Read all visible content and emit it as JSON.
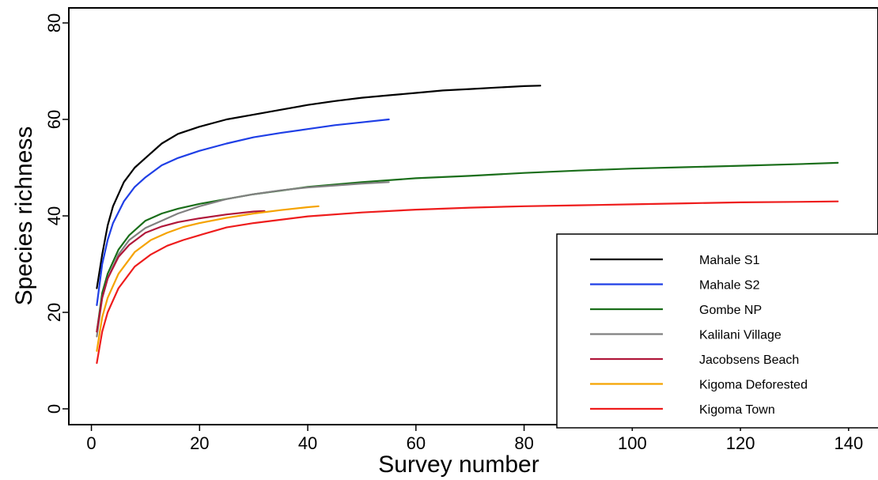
{
  "chart_data": {
    "type": "line",
    "title": "",
    "xlabel": "Survey number",
    "ylabel": "Species richness",
    "xlim": [
      -5,
      140
    ],
    "ylim": [
      -3,
      82
    ],
    "x_ticks": [
      0,
      20,
      40,
      60,
      80,
      100,
      120,
      140
    ],
    "y_ticks": [
      0,
      20,
      40,
      60,
      80
    ],
    "grid": false,
    "legend_position": "bottom-right",
    "series": [
      {
        "name": "Mahale S1",
        "color": "#000000",
        "x": [
          1,
          2,
          3,
          4,
          6,
          8,
          10,
          13,
          16,
          20,
          25,
          30,
          35,
          40,
          45,
          50,
          55,
          60,
          65,
          70,
          75,
          80,
          83
        ],
        "y": [
          25,
          32,
          38,
          42,
          47,
          50,
          52,
          55,
          57,
          58.5,
          60,
          61,
          62,
          63,
          63.8,
          64.5,
          65,
          65.5,
          66,
          66.3,
          66.6,
          66.9,
          67
        ]
      },
      {
        "name": "Mahale S2",
        "color": "#1f3fe6",
        "x": [
          1,
          2,
          3,
          4,
          6,
          8,
          10,
          13,
          16,
          20,
          25,
          30,
          35,
          40,
          45,
          50,
          55
        ],
        "y": [
          21.5,
          30,
          35,
          38.5,
          43,
          46,
          48,
          50.5,
          52,
          53.5,
          55,
          56.3,
          57.2,
          58,
          58.8,
          59.4,
          60
        ]
      },
      {
        "name": "Gombe NP",
        "color": "#1a6e1a",
        "x": [
          1,
          2,
          3,
          5,
          7,
          10,
          13,
          16,
          20,
          25,
          30,
          40,
          50,
          60,
          70,
          80,
          90,
          100,
          110,
          120,
          130,
          138
        ],
        "y": [
          16,
          24,
          28,
          33,
          36,
          39,
          40.5,
          41.5,
          42.5,
          43.5,
          44.5,
          46,
          47,
          47.8,
          48.3,
          48.9,
          49.4,
          49.8,
          50.1,
          50.4,
          50.7,
          51
        ]
      },
      {
        "name": "Kalilani Village",
        "color": "#808080",
        "x": [
          1,
          2,
          3,
          5,
          7,
          10,
          13,
          16,
          20,
          25,
          30,
          35,
          40,
          45,
          50,
          55
        ],
        "y": [
          15,
          23,
          27,
          32,
          35,
          37.5,
          39,
          40.5,
          42,
          43.5,
          44.5,
          45.3,
          45.9,
          46.3,
          46.7,
          47
        ]
      },
      {
        "name": "Jacobsens Beach",
        "color": "#b0173a",
        "x": [
          1,
          2,
          3,
          5,
          7,
          10,
          13,
          16,
          20,
          25,
          30,
          32
        ],
        "y": [
          16,
          23,
          27,
          31.5,
          34,
          36.5,
          37.8,
          38.7,
          39.5,
          40.3,
          40.9,
          41
        ]
      },
      {
        "name": "Kigoma Deforested",
        "color": "#f5a300",
        "x": [
          1,
          2,
          3,
          5,
          8,
          11,
          14,
          17,
          20,
          25,
          30,
          35,
          40,
          42
        ],
        "y": [
          12,
          19,
          23,
          28,
          32.5,
          35,
          36.5,
          37.7,
          38.5,
          39.6,
          40.5,
          41.2,
          41.8,
          42
        ]
      },
      {
        "name": "Kigoma Town",
        "color": "#ee1c1c",
        "x": [
          1,
          2,
          3,
          5,
          8,
          11,
          14,
          17,
          20,
          25,
          30,
          40,
          50,
          60,
          70,
          80,
          90,
          100,
          110,
          120,
          130,
          138
        ],
        "y": [
          9.5,
          16,
          20,
          25,
          29.5,
          32,
          33.8,
          35,
          36,
          37.6,
          38.5,
          39.9,
          40.7,
          41.3,
          41.7,
          42,
          42.2,
          42.4,
          42.6,
          42.8,
          42.9,
          43
        ]
      }
    ]
  }
}
